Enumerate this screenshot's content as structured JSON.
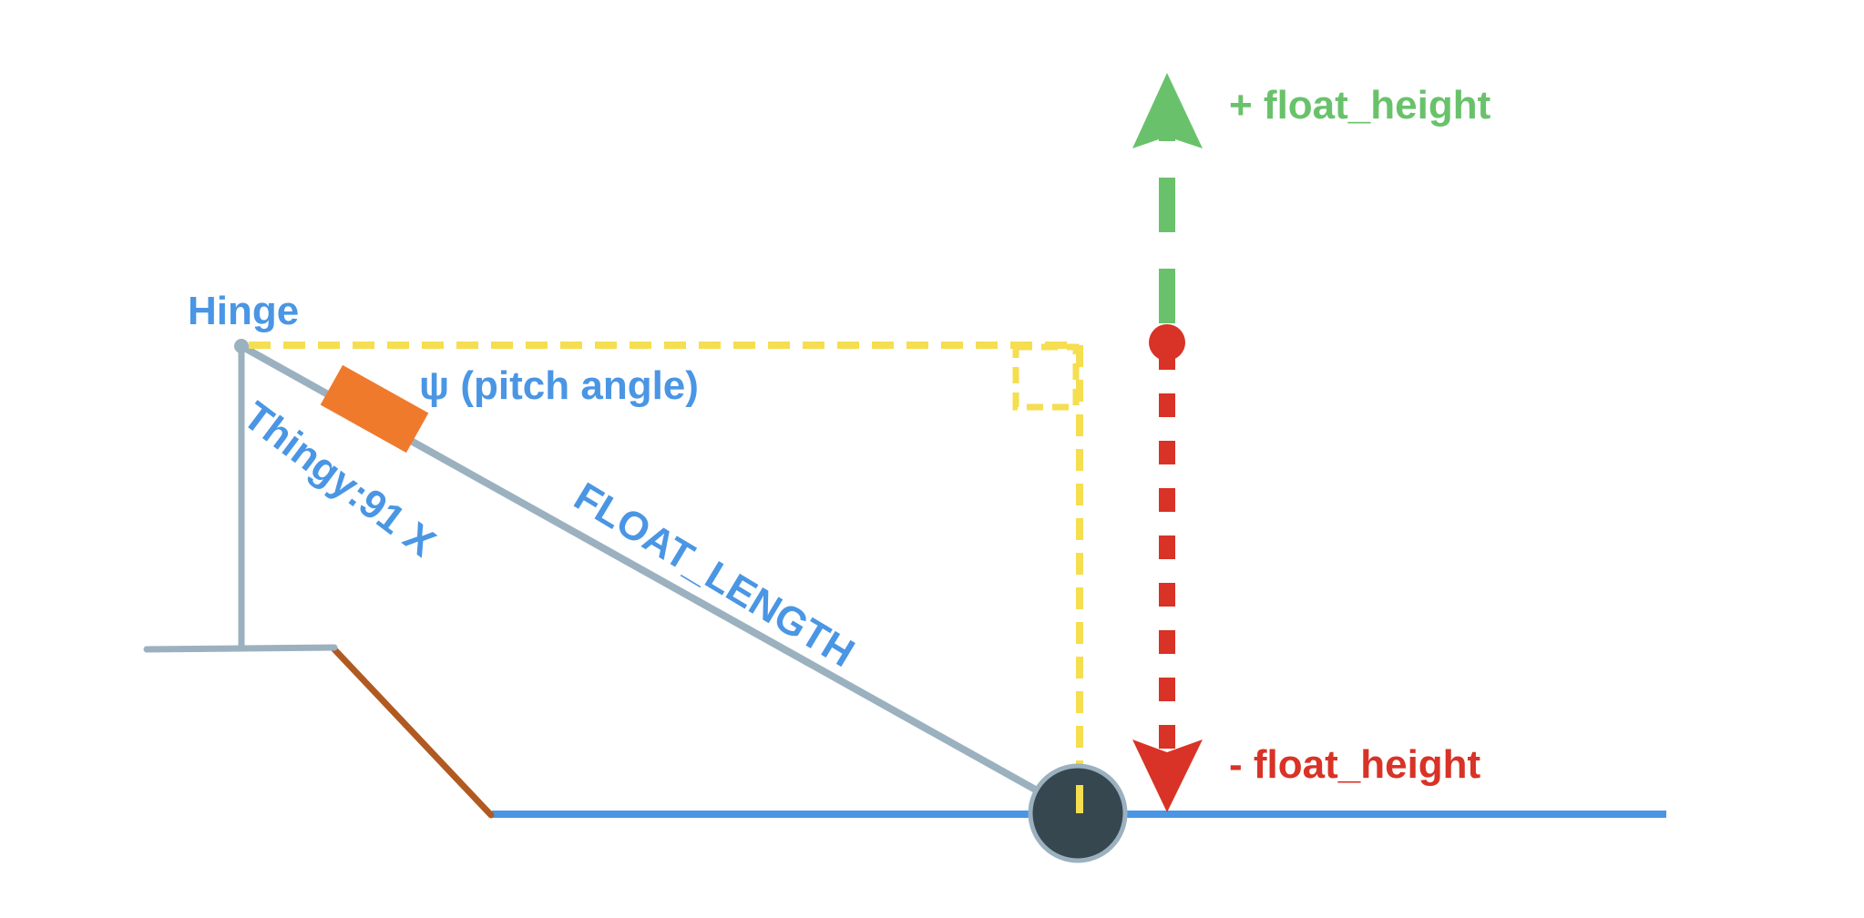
{
  "labels": {
    "hinge": "Hinge",
    "pitch_angle": "ψ (pitch angle)",
    "thingy": "Thingy:91 X",
    "float_length": "FLOAT_LENGTH",
    "plus_float_height": "+ float_height",
    "minus_float_height": "- float_height"
  },
  "colors": {
    "arm": "#9BB1BF",
    "label_blue": "#4A96E4",
    "device_orange": "#F07A2C",
    "guide_yellow": "#F5DE4F",
    "up_green": "#69C26B",
    "down_red": "#D93226",
    "water_blue": "#4A96E4",
    "ramp_brown": "#B05A22",
    "float_dark": "#37474F"
  },
  "icons": {
    "float": "float-circle-icon",
    "device": "thingy-device-icon"
  }
}
